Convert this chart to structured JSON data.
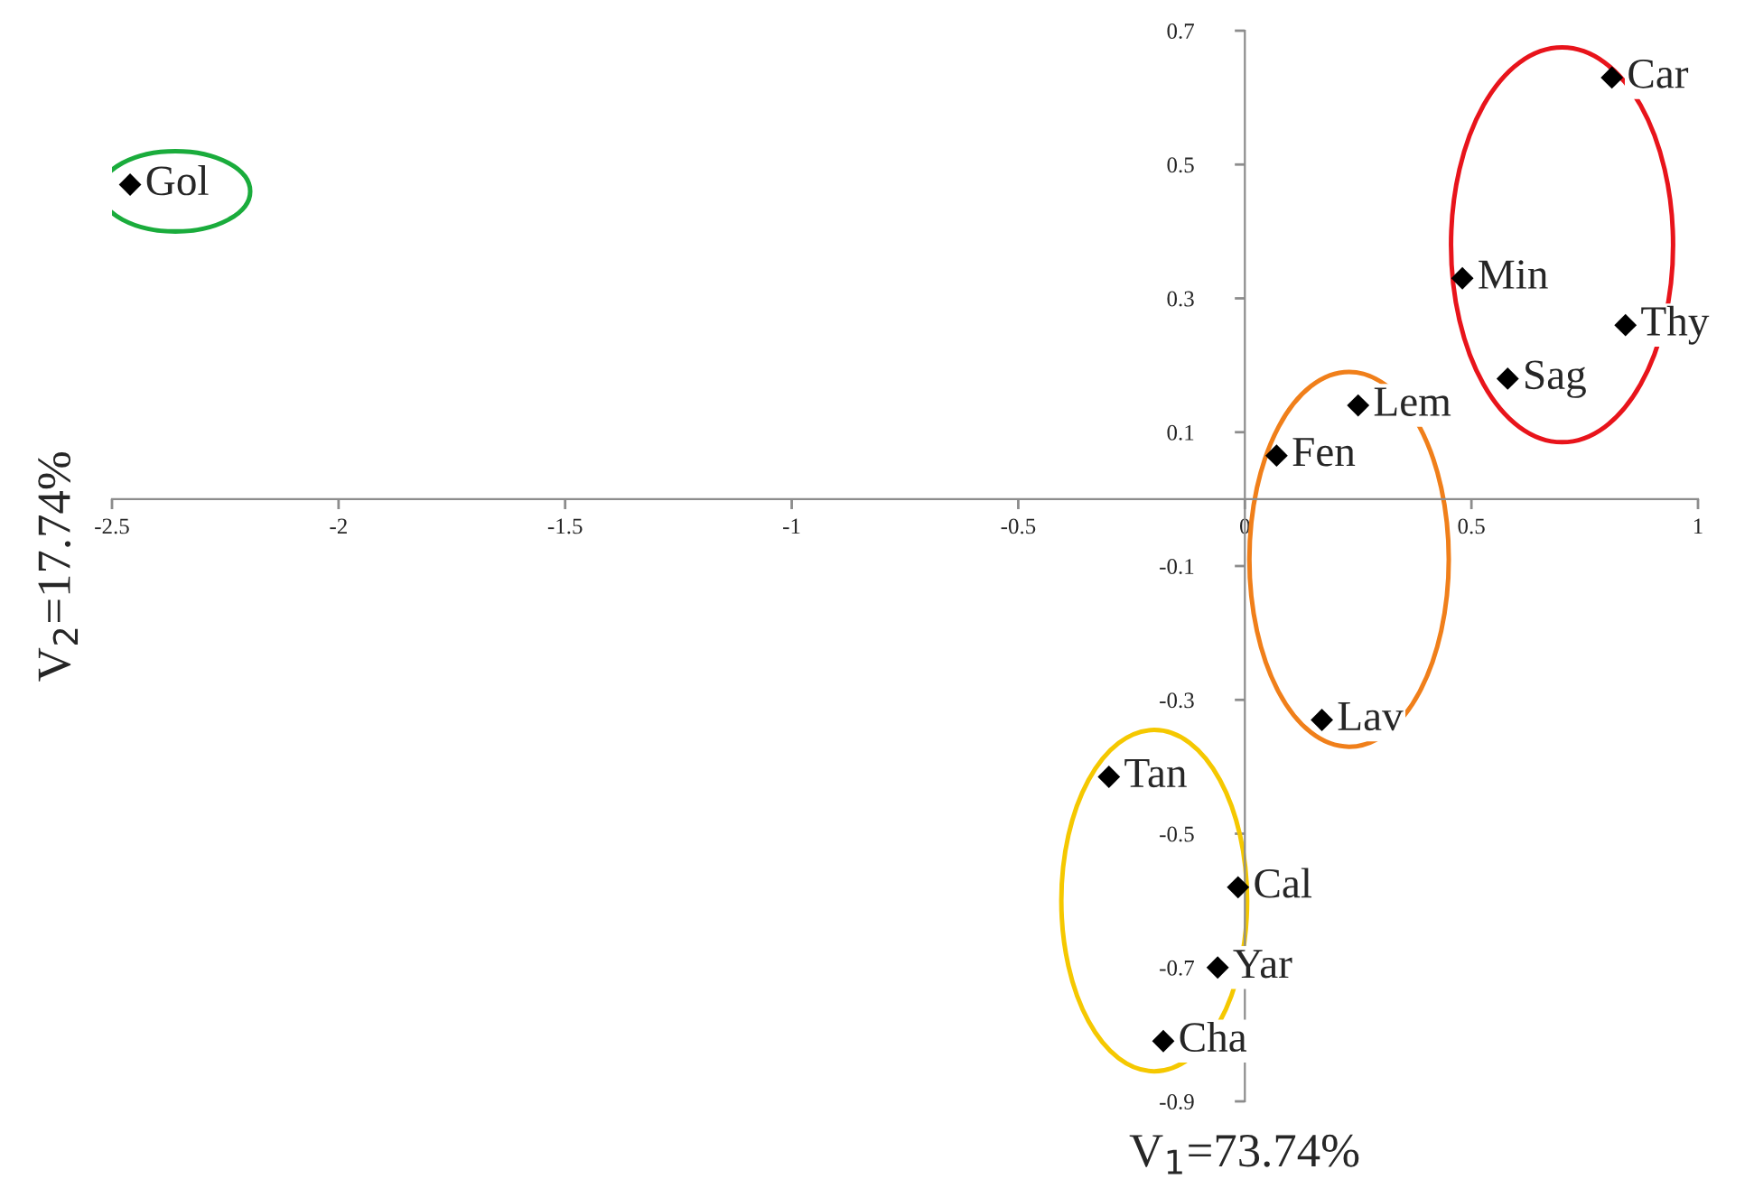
{
  "chart_data": {
    "type": "scatter",
    "xlabel": "V$_{1}$=73.74%",
    "ylabel": "V$_{2}$=17.74%",
    "series": [
      {
        "color": "#000000",
        "x": [
          -2.46,
          0.81,
          0.48,
          0.84,
          0.58,
          0.25,
          0.07,
          0.17,
          -0.3,
          -0.015,
          -0.06,
          -0.18
        ],
        "values": [
          0.47,
          0.63,
          0.33,
          0.26,
          0.18,
          0.14,
          0.065,
          -0.33,
          -0.415,
          -0.58,
          -0.7,
          -0.81
        ]
      }
    ],
    "annotations": [
      {
        "text": "Gol",
        "x": -2.46,
        "y": 0.47
      },
      {
        "text": "Car",
        "x": 0.81,
        "y": 0.63
      },
      {
        "text": "Min",
        "x": 0.48,
        "y": 0.33
      },
      {
        "text": "Thy",
        "x": 0.84,
        "y": 0.26
      },
      {
        "text": "Sag",
        "x": 0.58,
        "y": 0.18
      },
      {
        "text": "Lem",
        "x": 0.25,
        "y": 0.14
      },
      {
        "text": "Fen",
        "x": 0.07,
        "y": 0.065
      },
      {
        "text": "Lav",
        "x": 0.17,
        "y": -0.33
      },
      {
        "text": "Tan",
        "x": -0.3,
        "y": -0.415
      },
      {
        "text": "Cal",
        "x": -0.015,
        "y": -0.58
      },
      {
        "text": "Yar",
        "x": -0.06,
        "y": -0.7
      },
      {
        "text": "Cha",
        "x": -0.18,
        "y": -0.81
      }
    ],
    "xlim": [
      -2.5,
      1
    ],
    "xticks": [
      -2.5,
      -2,
      -1.5,
      -1,
      -0.5,
      0,
      0.5,
      1
    ],
    "ylim": [
      -0.9,
      0.7
    ],
    "yticks": [
      -0.9,
      -0.7,
      -0.5,
      -0.3,
      -0.1,
      0.1,
      0.3,
      0.5,
      0.7
    ],
    "marker": "diamond",
    "grid": false,
    "legend": false
  }
}
